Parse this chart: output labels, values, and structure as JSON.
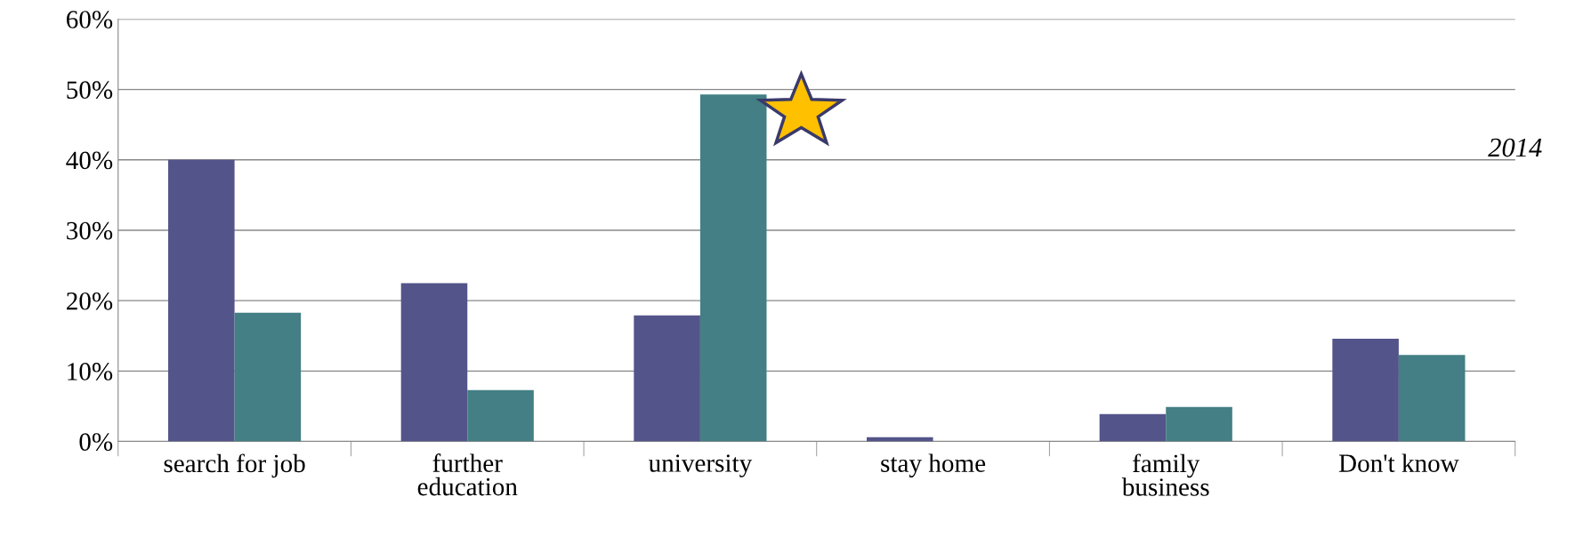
{
  "chart_data": {
    "type": "bar",
    "categories": [
      "search for job",
      "further\neducation",
      "university",
      "stay home",
      "family\nbusiness",
      "Don't know"
    ],
    "series": [
      {
        "color": "#53548a",
        "values": [
          40.0,
          22.5,
          17.9,
          0.6,
          3.9,
          14.6
        ]
      },
      {
        "color": "#437f84",
        "values": [
          18.3,
          7.3,
          49.3,
          0,
          4.9,
          12.3
        ]
      }
    ],
    "ylim": [
      0,
      60
    ],
    "yticks": [
      {
        "value": 0,
        "label": "0%"
      },
      {
        "value": 10,
        "label": "10%"
      },
      {
        "value": 20,
        "label": "20%"
      },
      {
        "value": 30,
        "label": "30%"
      },
      {
        "value": 40,
        "label": "40%"
      },
      {
        "value": 50,
        "label": "50%"
      },
      {
        "value": 60,
        "label": "60%"
      }
    ],
    "grid": "y",
    "legend": false,
    "annotations": [
      "2014"
    ]
  }
}
